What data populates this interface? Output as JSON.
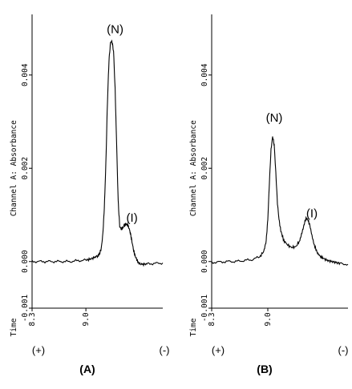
{
  "chart_data": [
    {
      "type": "line",
      "panel_label": "(A)",
      "ylabel": "Channel A: Absorbance",
      "xlabel": "Time",
      "xlim": [
        8.3,
        10.0
      ],
      "ylim": [
        -0.001,
        0.0053
      ],
      "x_ticks": [
        {
          "value": 8.3,
          "label": "8.3"
        },
        {
          "value": 9.0,
          "label": "9.0"
        }
      ],
      "y_ticks": [
        {
          "value": -0.001,
          "label": "-0.001"
        },
        {
          "value": 0.0,
          "label": "0.000"
        },
        {
          "value": 0.002,
          "label": "0.002"
        },
        {
          "value": 0.004,
          "label": "0.004"
        }
      ],
      "polarity_left": "(+)",
      "polarity_right": "(-)",
      "annotations": [
        {
          "text": "(N)",
          "x": 9.38,
          "y": 0.0049
        },
        {
          "text": "(I)",
          "x": 9.6,
          "y": 0.00085
        }
      ],
      "series": [
        {
          "x": [
            8.3,
            8.4,
            8.5,
            8.6,
            8.7,
            8.8,
            8.9,
            9.0,
            9.05,
            9.1,
            9.15,
            9.18,
            9.2,
            9.22,
            9.24,
            9.26,
            9.28,
            9.3,
            9.32,
            9.34,
            9.36,
            9.38,
            9.4,
            9.42,
            9.44,
            9.46,
            9.48,
            9.5,
            9.52,
            9.54,
            9.56,
            9.58,
            9.6,
            9.62,
            9.64,
            9.66,
            9.68,
            9.7,
            9.75,
            9.8,
            9.9,
            10.0
          ],
          "y": [
            0.0,
            0.0,
            0.0,
            0.0,
            0.0,
            0.0,
            2e-05,
            3e-05,
            5e-05,
            8e-05,
            0.00012,
            0.00018,
            0.00028,
            0.00058,
            0.00115,
            0.0021,
            0.0034,
            0.0043,
            0.0047,
            0.00472,
            0.0045,
            0.0037,
            0.0025,
            0.0013,
            0.00075,
            0.0007,
            0.00072,
            0.00078,
            0.0008,
            0.00079,
            0.00072,
            0.0006,
            0.00042,
            0.00025,
            0.00012,
            5e-05,
            -2e-05,
            -5e-05,
            -6e-05,
            -5e-05,
            -4e-05,
            -3e-05
          ]
        }
      ]
    },
    {
      "type": "line",
      "panel_label": "(B)",
      "ylabel": "Channel A: Absorbance",
      "xlabel": "Time",
      "xlim": [
        8.3,
        10.0
      ],
      "ylim": [
        -0.001,
        0.0053
      ],
      "x_ticks": [
        {
          "value": 8.3,
          "label": "8.3"
        },
        {
          "value": 9.0,
          "label": "9.0"
        }
      ],
      "y_ticks": [
        {
          "value": -0.001,
          "label": "-0.001"
        },
        {
          "value": 0.0,
          "label": "0.000"
        },
        {
          "value": 0.002,
          "label": "0.002"
        },
        {
          "value": 0.004,
          "label": "0.004"
        }
      ],
      "polarity_left": "(+)",
      "polarity_right": "(-)",
      "annotations": [
        {
          "text": "(N)",
          "x": 9.08,
          "y": 0.003
        },
        {
          "text": "(I)",
          "x": 9.55,
          "y": 0.00095
        }
      ],
      "series": [
        {
          "x": [
            8.3,
            8.4,
            8.5,
            8.6,
            8.7,
            8.8,
            8.9,
            8.95,
            8.98,
            9.0,
            9.02,
            9.04,
            9.06,
            9.08,
            9.1,
            9.12,
            9.14,
            9.16,
            9.18,
            9.2,
            9.25,
            9.3,
            9.35,
            9.4,
            9.43,
            9.46,
            9.48,
            9.5,
            9.52,
            9.55,
            9.58,
            9.62,
            9.66,
            9.7,
            9.75,
            9.8,
            9.85,
            9.9,
            10.0
          ],
          "y": [
            -2e-05,
            -1e-05,
            0.0,
            0.0,
            2e-05,
            4e-05,
            0.0001,
            0.00022,
            0.00045,
            0.0009,
            0.0017,
            0.0024,
            0.00268,
            0.0025,
            0.0019,
            0.00125,
            0.0009,
            0.00068,
            0.00055,
            0.00045,
            0.00035,
            0.0003,
            0.00032,
            0.00045,
            0.00065,
            0.00085,
            0.00093,
            0.0009,
            0.0008,
            0.00055,
            0.00035,
            0.00018,
            0.0001,
            6e-05,
            2e-05,
            0.0,
            -2e-05,
            -4e-05,
            -6e-05
          ]
        }
      ]
    }
  ]
}
